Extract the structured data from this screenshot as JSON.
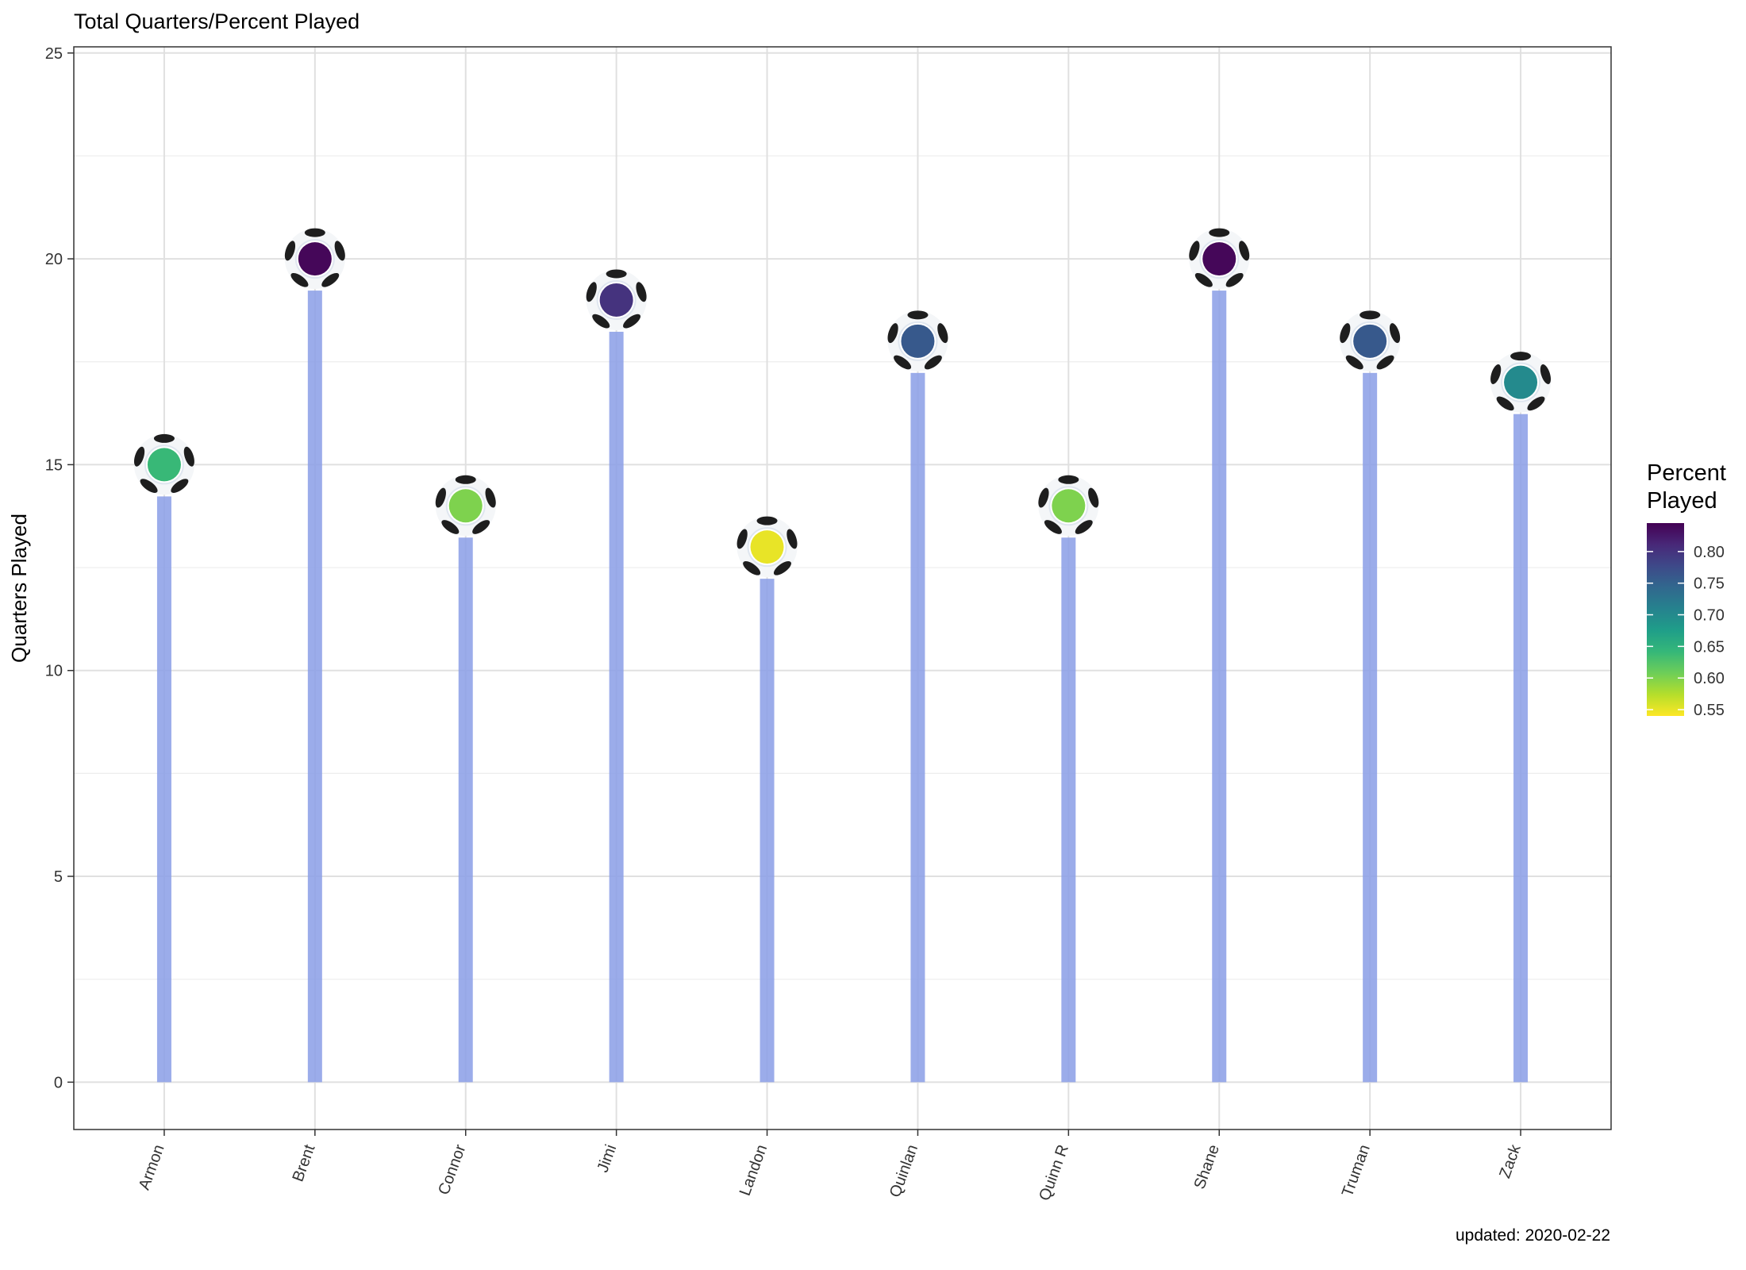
{
  "chart_data": {
    "type": "lollipop",
    "title": "Total Quarters/Percent Played",
    "xlabel": "",
    "ylabel": "Quarters Played",
    "caption": "updated: 2020-02-22",
    "ylim": [
      -1.15,
      25.15
    ],
    "yticks": [
      0,
      5,
      10,
      15,
      20,
      25
    ],
    "grid": true,
    "categories": [
      "Armon",
      "Brent",
      "Connor",
      "Jimi",
      "Landon",
      "Quinlan",
      "Quinn R",
      "Shane",
      "Truman",
      "Zack"
    ],
    "values": [
      15,
      20,
      14,
      19,
      13,
      18,
      14,
      20,
      18,
      17
    ],
    "percent_played": [
      0.64,
      0.84,
      0.6,
      0.8,
      0.55,
      0.76,
      0.6,
      0.84,
      0.76,
      0.7
    ],
    "stem_color": "#8a9de6",
    "legend": {
      "title_line1": "Percent",
      "title_line2": "Played",
      "placement": "right",
      "range": [
        0.54,
        0.845
      ],
      "ticks": [
        0.55,
        0.6,
        0.65,
        0.7,
        0.75,
        0.8
      ],
      "tick_labels": [
        "0.55",
        "0.60",
        "0.65",
        "0.70",
        "0.75",
        "0.80"
      ],
      "palette": [
        "#fde725",
        "#b5de2b",
        "#6ece58",
        "#35b779",
        "#1f9e89",
        "#26828e",
        "#31688e",
        "#3e4989",
        "#482878",
        "#440154"
      ]
    }
  }
}
